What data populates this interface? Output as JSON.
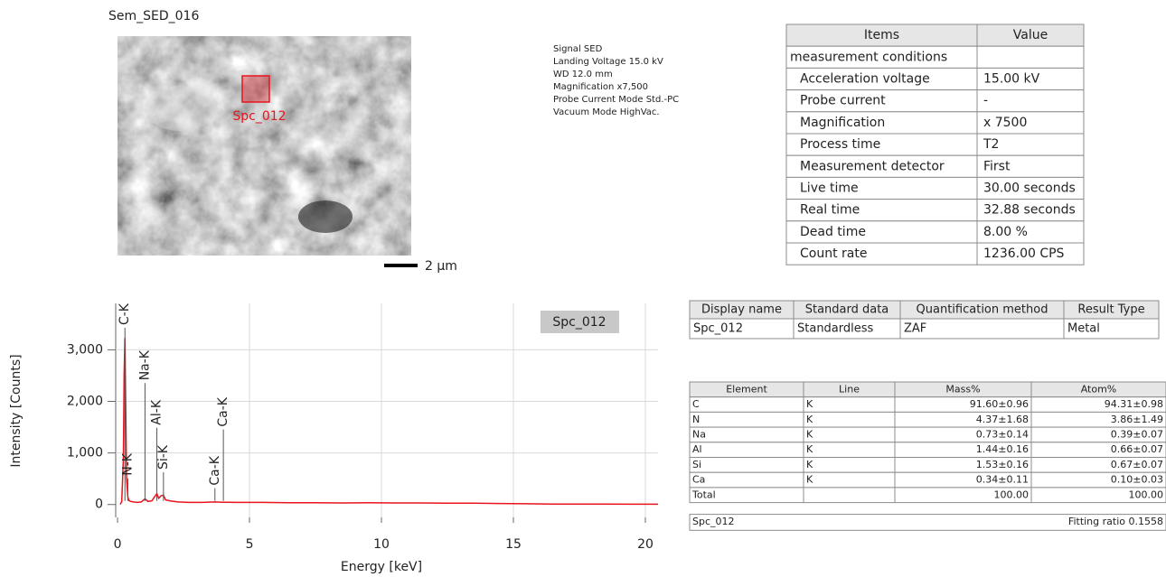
{
  "image": {
    "title": "Sem_SED_016",
    "region_label": "Spc_012",
    "scale_bar": "2 µm"
  },
  "metadata": [
    "Signal SED",
    "Landing Voltage 15.0 kV",
    "WD 12.0 mm",
    "Magnification x7,500",
    "Probe Current Mode Std.-PC",
    "Vacuum Mode HighVac."
  ],
  "conditions_table": {
    "header": [
      "Items",
      "Value"
    ],
    "rows": [
      [
        "measurement conditions"
      ],
      [
        "Acceleration voltage",
        "15.00 kV"
      ],
      [
        "Probe current",
        "-"
      ],
      [
        "Magnification",
        "x 7500"
      ],
      [
        "Process time",
        "T2"
      ],
      [
        "Measurement detector",
        "First"
      ],
      [
        "Live time",
        "30.00 seconds"
      ],
      [
        "Real time",
        "32.88 seconds"
      ],
      [
        "Dead time",
        "8.00 %"
      ],
      [
        "Count rate",
        "1236.00 CPS"
      ]
    ]
  },
  "display_table": {
    "header": [
      "Display name",
      "Standard data",
      "Quantification method",
      "Result Type"
    ],
    "rows": [
      [
        "Spc_012",
        "Standardless",
        "ZAF",
        "Metal"
      ]
    ]
  },
  "element_table": {
    "header": [
      "Element",
      "Line",
      "Mass%",
      "Atom%"
    ],
    "rows": [
      [
        "C",
        "K",
        "91.60±0.96",
        "94.31±0.98"
      ],
      [
        "N",
        "K",
        "4.37±1.68",
        "3.86±1.49"
      ],
      [
        "Na",
        "K",
        "0.73±0.14",
        "0.39±0.07"
      ],
      [
        "Al",
        "K",
        "1.44±0.16",
        "0.66±0.07"
      ],
      [
        "Si",
        "K",
        "1.53±0.16",
        "0.67±0.07"
      ],
      [
        "Ca",
        "K",
        "0.34±0.11",
        "0.10±0.03"
      ]
    ],
    "total": [
      "Total",
      "100.00",
      "100.00"
    ],
    "footer": [
      "Spc_012",
      "Fitting ratio 0.1558"
    ]
  },
  "chart_data": {
    "type": "line",
    "xlabel": "Energy [keV]",
    "ylabel": "Intensity [Counts]",
    "x": [
      0.1,
      0.16,
      0.22,
      0.25,
      0.28,
      0.31,
      0.34,
      0.39,
      0.43,
      0.5,
      0.6,
      0.75,
      0.9,
      1.04,
      1.15,
      1.3,
      1.42,
      1.49,
      1.56,
      1.65,
      1.74,
      1.82,
      2.0,
      2.3,
      2.7,
      3.2,
      3.69,
      4.01,
      4.5,
      5.5,
      6.5,
      7.5,
      8.5,
      9.5,
      10.5,
      11.5,
      12.5,
      13.5,
      14.5,
      15.5,
      16.5,
      17.5,
      18.5,
      19.5,
      20.48
    ],
    "series": [
      {
        "name": "Spc_012",
        "color": "#e8141e",
        "values": [
          0,
          60,
          900,
          2500,
          3230,
          1900,
          500,
          150,
          80,
          60,
          50,
          40,
          50,
          110,
          60,
          70,
          160,
          210,
          120,
          170,
          180,
          90,
          70,
          50,
          40,
          40,
          50,
          45,
          40,
          40,
          35,
          35,
          30,
          35,
          30,
          30,
          25,
          25,
          20,
          15,
          10,
          10,
          8,
          6,
          5
        ]
      }
    ],
    "xlim": [
      -0.07,
      20.48
    ],
    "ylim": [
      -250,
      3900
    ],
    "xticks": [
      0,
      5,
      10,
      15,
      20
    ],
    "yticks": [
      0,
      {
        "value": 1000,
        "label": "1,000"
      },
      {
        "value": 2000,
        "label": "2,000"
      },
      {
        "value": 3000,
        "label": "3,000"
      }
    ],
    "grid": true,
    "peaks": [
      {
        "label": "C-K",
        "x": 0.28
      },
      {
        "label": "N-K",
        "x": 0.39
      },
      {
        "label": "Na-K",
        "x": 1.04
      },
      {
        "label": "Al-K",
        "x": 1.49
      },
      {
        "label": "Si-K",
        "x": 1.74
      },
      {
        "label": "Ca-K",
        "x": 3.69
      },
      {
        "label": "Ca-K",
        "x": 4.01
      }
    ]
  }
}
